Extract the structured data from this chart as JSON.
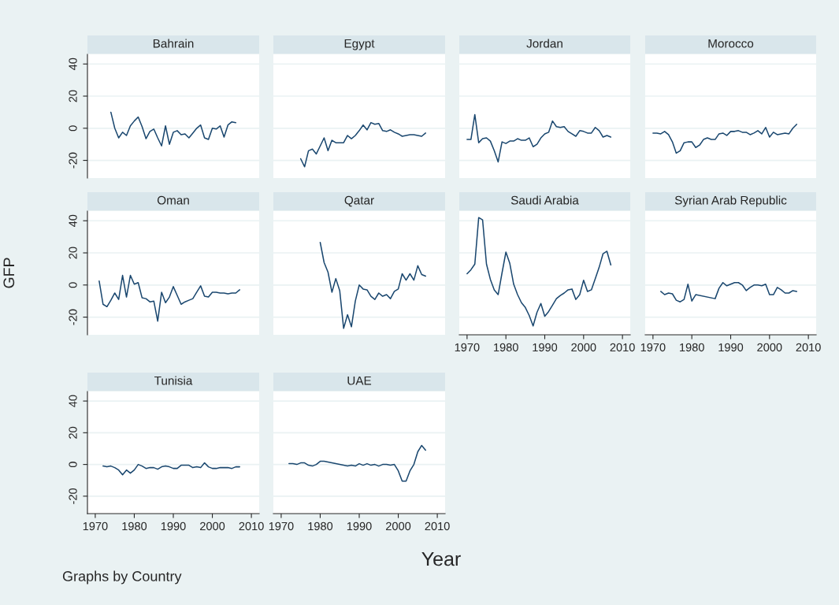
{
  "chart_data": [
    {
      "type": "line",
      "title": "Bahrain",
      "x": [
        1974,
        1975,
        1976,
        1977,
        1978,
        1979,
        1980,
        1981,
        1982,
        1983,
        1984,
        1985,
        1986,
        1987,
        1988,
        1989,
        1990,
        1991,
        1992,
        1993,
        1994,
        1995,
        1996,
        1997,
        1998,
        1999,
        2000,
        2001,
        2002,
        2003,
        2004,
        2005,
        2006
      ],
      "values": [
        10,
        0,
        -6,
        -2.5,
        -4.5,
        1.5,
        4.5,
        7,
        1,
        -6.5,
        -2,
        -0.5,
        -6,
        -11,
        1.5,
        -10,
        -2.5,
        -1.5,
        -4,
        -3.5,
        -6,
        -3,
        0,
        2,
        -6,
        -7,
        0,
        -0.5,
        1.5,
        -5.5,
        2,
        4,
        3.5
      ],
      "color": "#1a476f",
      "xlim": [
        1968,
        2012
      ],
      "ylim": [
        -31,
        46
      ],
      "xticks": [
        1970,
        1980,
        1990,
        2000,
        2010
      ],
      "yticks": [
        -20,
        0,
        20,
        40
      ],
      "grid": "y",
      "tick_labels": "y"
    },
    {
      "type": "line",
      "title": "Egypt",
      "x": [
        1975,
        1976,
        1977,
        1978,
        1979,
        1980,
        1981,
        1982,
        1983,
        1984,
        1985,
        1986,
        1987,
        1988,
        1989,
        1990,
        1991,
        1992,
        1993,
        1994,
        1995,
        1996,
        1997,
        1998,
        1999,
        2000,
        2001,
        2002,
        2003,
        2004,
        2005,
        2006,
        2007
      ],
      "values": [
        -19,
        -24,
        -14,
        -13,
        -16,
        -11,
        -6,
        -14,
        -7.5,
        -9,
        -9,
        -9,
        -4.5,
        -6.5,
        -4.5,
        -1.5,
        2,
        -1,
        3.5,
        2.5,
        3,
        -1.5,
        -2,
        -1,
        -2.5,
        -3.5,
        -5,
        -4.5,
        -4,
        -4,
        -4.5,
        -5,
        -3
      ],
      "color": "#1a476f",
      "xlim": [
        1968,
        2012
      ],
      "ylim": [
        -31,
        46
      ],
      "xticks": [
        1970,
        1980,
        1990,
        2000,
        2010
      ],
      "yticks": [
        -20,
        0,
        20,
        40
      ],
      "grid": "y",
      "tick_labels": false
    },
    {
      "type": "line",
      "title": "Jordan",
      "x": [
        1970,
        1971,
        1972,
        1973,
        1974,
        1975,
        1976,
        1977,
        1978,
        1979,
        1980,
        1981,
        1982,
        1983,
        1984,
        1985,
        1986,
        1987,
        1988,
        1989,
        1990,
        1991,
        1992,
        1993,
        1994,
        1995,
        1996,
        1997,
        1998,
        1999,
        2000,
        2001,
        2002,
        2003,
        2004,
        2005,
        2006,
        2007
      ],
      "values": [
        -7,
        -7,
        8.5,
        -9,
        -6.5,
        -6,
        -8,
        -14,
        -21,
        -8.5,
        -9.5,
        -8,
        -8,
        -6.5,
        -7.5,
        -7.5,
        -6,
        -11.5,
        -10,
        -6,
        -3.5,
        -2.5,
        4.5,
        1,
        0.5,
        1,
        -2,
        -3.5,
        -5,
        -1.5,
        -2,
        -3,
        -3,
        0.5,
        -1.5,
        -5.5,
        -4.5,
        -5.5
      ],
      "color": "#1a476f",
      "xlim": [
        1968,
        2012
      ],
      "ylim": [
        -31,
        46
      ],
      "xticks": [
        1970,
        1980,
        1990,
        2000,
        2010
      ],
      "yticks": [
        -20,
        0,
        20,
        40
      ],
      "grid": "y",
      "tick_labels": false
    },
    {
      "type": "line",
      "title": "Morocco",
      "x": [
        1970,
        1971,
        1972,
        1973,
        1974,
        1975,
        1976,
        1977,
        1978,
        1979,
        1980,
        1981,
        1982,
        1983,
        1984,
        1985,
        1986,
        1987,
        1988,
        1989,
        1990,
        1991,
        1992,
        1993,
        1994,
        1995,
        1996,
        1997,
        1998,
        1999,
        2000,
        2001,
        2002,
        2003,
        2004,
        2005,
        2006,
        2007
      ],
      "values": [
        -3,
        -3,
        -3.5,
        -2,
        -4,
        -8.5,
        -15.5,
        -14,
        -9,
        -8.5,
        -8.5,
        -12,
        -10.5,
        -7,
        -6,
        -7,
        -7,
        -3.5,
        -3,
        -4.5,
        -2,
        -2,
        -1.5,
        -2.5,
        -2.5,
        -4,
        -3,
        -1.5,
        -3.5,
        0.5,
        -5.5,
        -2.5,
        -4,
        -3.5,
        -3,
        -3.5,
        0,
        2.5
      ],
      "color": "#1a476f",
      "xlim": [
        1968,
        2012
      ],
      "ylim": [
        -31,
        46
      ],
      "xticks": [
        1970,
        1980,
        1990,
        2000,
        2010
      ],
      "yticks": [
        -20,
        0,
        20,
        40
      ],
      "grid": "y",
      "tick_labels": false
    },
    {
      "type": "line",
      "title": "Oman",
      "ylabel": "GFP",
      "x": [
        1971,
        1972,
        1973,
        1974,
        1975,
        1976,
        1977,
        1978,
        1979,
        1980,
        1981,
        1982,
        1983,
        1984,
        1985,
        1986,
        1987,
        1988,
        1989,
        1990,
        1991,
        1992,
        1993,
        1994,
        1995,
        1996,
        1997,
        1998,
        1999,
        2000,
        2001,
        2002,
        2003,
        2004,
        2005,
        2006,
        2007
      ],
      "values": [
        2.5,
        -12,
        -13.5,
        -9.5,
        -5,
        -9,
        6,
        -7.5,
        6,
        0.5,
        1.5,
        -8,
        -8.5,
        -10.5,
        -10,
        -22.5,
        -4.5,
        -11,
        -7.5,
        -1,
        -6.5,
        -12,
        -10.5,
        -9.5,
        -8.5,
        -4.5,
        -0.5,
        -7,
        -7.5,
        -4.5,
        -4.5,
        -5,
        -5,
        -5.5,
        -5,
        -5,
        -3
      ],
      "color": "#1a476f",
      "xlim": [
        1968,
        2012
      ],
      "ylim": [
        -31,
        46
      ],
      "xticks": [
        1970,
        1980,
        1990,
        2000,
        2010
      ],
      "yticks": [
        -20,
        0,
        20,
        40
      ],
      "grid": "y",
      "tick_labels": "y"
    },
    {
      "type": "line",
      "title": "Qatar",
      "x": [
        1980,
        1981,
        1982,
        1983,
        1984,
        1985,
        1986,
        1987,
        1988,
        1989,
        1990,
        1991,
        1992,
        1993,
        1994,
        1995,
        1996,
        1997,
        1998,
        1999,
        2000,
        2001,
        2002,
        2003,
        2004,
        2005,
        2006,
        2007
      ],
      "values": [
        26.5,
        14,
        8,
        -4.5,
        4,
        -3.5,
        -27,
        -18.5,
        -26,
        -10,
        0,
        -2.5,
        -3,
        -7,
        -9,
        -5,
        -7,
        -6,
        -8.5,
        -4,
        -2.5,
        7,
        3,
        7,
        3,
        12,
        6.5,
        5.5
      ],
      "color": "#1a476f",
      "xlim": [
        1968,
        2012
      ],
      "ylim": [
        -31,
        46
      ],
      "xticks": [
        1970,
        1980,
        1990,
        2000,
        2010
      ],
      "yticks": [
        -20,
        0,
        20,
        40
      ],
      "grid": "y",
      "tick_labels": false
    },
    {
      "type": "line",
      "title": "Saudi Arabia",
      "x": [
        1970,
        1971,
        1972,
        1973,
        1974,
        1975,
        1976,
        1977,
        1978,
        1979,
        1980,
        1981,
        1982,
        1983,
        1984,
        1985,
        1986,
        1987,
        1988,
        1989,
        1990,
        1991,
        1992,
        1993,
        1994,
        1995,
        1996,
        1997,
        1998,
        1999,
        2000,
        2001,
        2002,
        2003,
        2004,
        2005,
        2006,
        2007
      ],
      "values": [
        7,
        9.5,
        13,
        42,
        40.5,
        13,
        3.5,
        -3,
        -6,
        7.5,
        20.5,
        13.5,
        0.5,
        -6,
        -11,
        -14,
        -19,
        -25.5,
        -17,
        -11.5,
        -19.5,
        -16.5,
        -12.5,
        -8.5,
        -6.5,
        -5,
        -3,
        -2.5,
        -9,
        -6,
        3,
        -4,
        -3,
        4,
        11,
        19.5,
        21,
        12.5
      ],
      "color": "#1a476f",
      "xlim": [
        1968,
        2012
      ],
      "ylim": [
        -31,
        46
      ],
      "xticks": [
        1970,
        1980,
        1990,
        2000,
        2010
      ],
      "yticks": [
        -20,
        0,
        20,
        40
      ],
      "grid": "y",
      "tick_labels": "x"
    },
    {
      "type": "line",
      "title": "Syrian Arab Republic",
      "x": [
        1972,
        1973,
        1974,
        1975,
        1976,
        1977,
        1978,
        1979,
        1980,
        1981,
        1986,
        1987,
        1988,
        1989,
        1990,
        1991,
        1992,
        1993,
        1994,
        1995,
        1996,
        1997,
        1998,
        1999,
        2000,
        2001,
        2002,
        2003,
        2004,
        2005,
        2006,
        2007
      ],
      "values": [
        -4,
        -6,
        -5,
        -5.5,
        -9.5,
        -10.5,
        -9,
        0.5,
        -10,
        -6,
        -8.5,
        -2,
        1.5,
        -0.5,
        0.5,
        1.5,
        1.5,
        0,
        -3.5,
        -1.5,
        0,
        0,
        -0.5,
        0.5,
        -6,
        -6,
        -1.5,
        -3,
        -5,
        -5,
        -3.5,
        -4
      ],
      "color": "#1a476f",
      "xlim": [
        1968,
        2012
      ],
      "ylim": [
        -31,
        46
      ],
      "xticks": [
        1970,
        1980,
        1990,
        2000,
        2010
      ],
      "yticks": [
        -20,
        0,
        20,
        40
      ],
      "grid": "y",
      "tick_labels": "x"
    },
    {
      "type": "line",
      "title": "Tunisia",
      "annotations": [
        "Graphs by Country"
      ],
      "x": [
        1972,
        1973,
        1974,
        1975,
        1976,
        1977,
        1978,
        1979,
        1980,
        1981,
        1982,
        1983,
        1984,
        1985,
        1986,
        1987,
        1988,
        1989,
        1990,
        1991,
        1992,
        1993,
        1994,
        1995,
        1996,
        1997,
        1998,
        1999,
        2000,
        2001,
        2002,
        2003,
        2004,
        2005,
        2006,
        2007
      ],
      "values": [
        -1,
        -1.5,
        -1,
        -2,
        -3.5,
        -6.5,
        -3.5,
        -5.5,
        -3.5,
        0,
        -1,
        -2.5,
        -2,
        -2,
        -3,
        -1.5,
        -1,
        -1.5,
        -2.5,
        -2.5,
        -0.5,
        -0.5,
        -0.5,
        -2,
        -1.5,
        -2,
        1,
        -1.5,
        -2.5,
        -2.5,
        -2,
        -2,
        -2,
        -2.5,
        -1.5,
        -1.5
      ],
      "color": "#1a476f",
      "xlim": [
        1968,
        2012
      ],
      "ylim": [
        -31,
        46
      ],
      "xticks": [
        1970,
        1980,
        1990,
        2000,
        2010
      ],
      "yticks": [
        -20,
        0,
        20,
        40
      ],
      "grid": "y"
    },
    {
      "type": "line",
      "title": "UAE",
      "xlabel": "Year",
      "x": [
        1972,
        1973,
        1974,
        1975,
        1976,
        1977,
        1978,
        1979,
        1980,
        1981,
        1982,
        1983,
        1984,
        1985,
        1986,
        1987,
        1988,
        1989,
        1990,
        1991,
        1992,
        1993,
        1994,
        1995,
        1996,
        1997,
        1998,
        1999,
        2000,
        2001,
        2002,
        2003,
        2004,
        2005,
        2006,
        2007
      ],
      "values": [
        0.5,
        0.5,
        0,
        1,
        1,
        -0.5,
        -1,
        0,
        2,
        2,
        1.5,
        1,
        0.5,
        0,
        -0.5,
        -1,
        -0.5,
        -1,
        0.5,
        -0.5,
        0.5,
        -0.5,
        0,
        -1,
        0,
        0,
        -0.5,
        0,
        -4,
        -10.5,
        -10.5,
        -4,
        0,
        8,
        12,
        9
      ],
      "color": "#1a476f",
      "xlim": [
        1968,
        2012
      ],
      "ylim": [
        -31,
        46
      ],
      "xticks": [
        1970,
        1980,
        1990,
        2000,
        2010
      ],
      "yticks": [
        -20,
        0,
        20,
        40
      ],
      "grid": "y",
      "tick_labels": "x"
    }
  ]
}
